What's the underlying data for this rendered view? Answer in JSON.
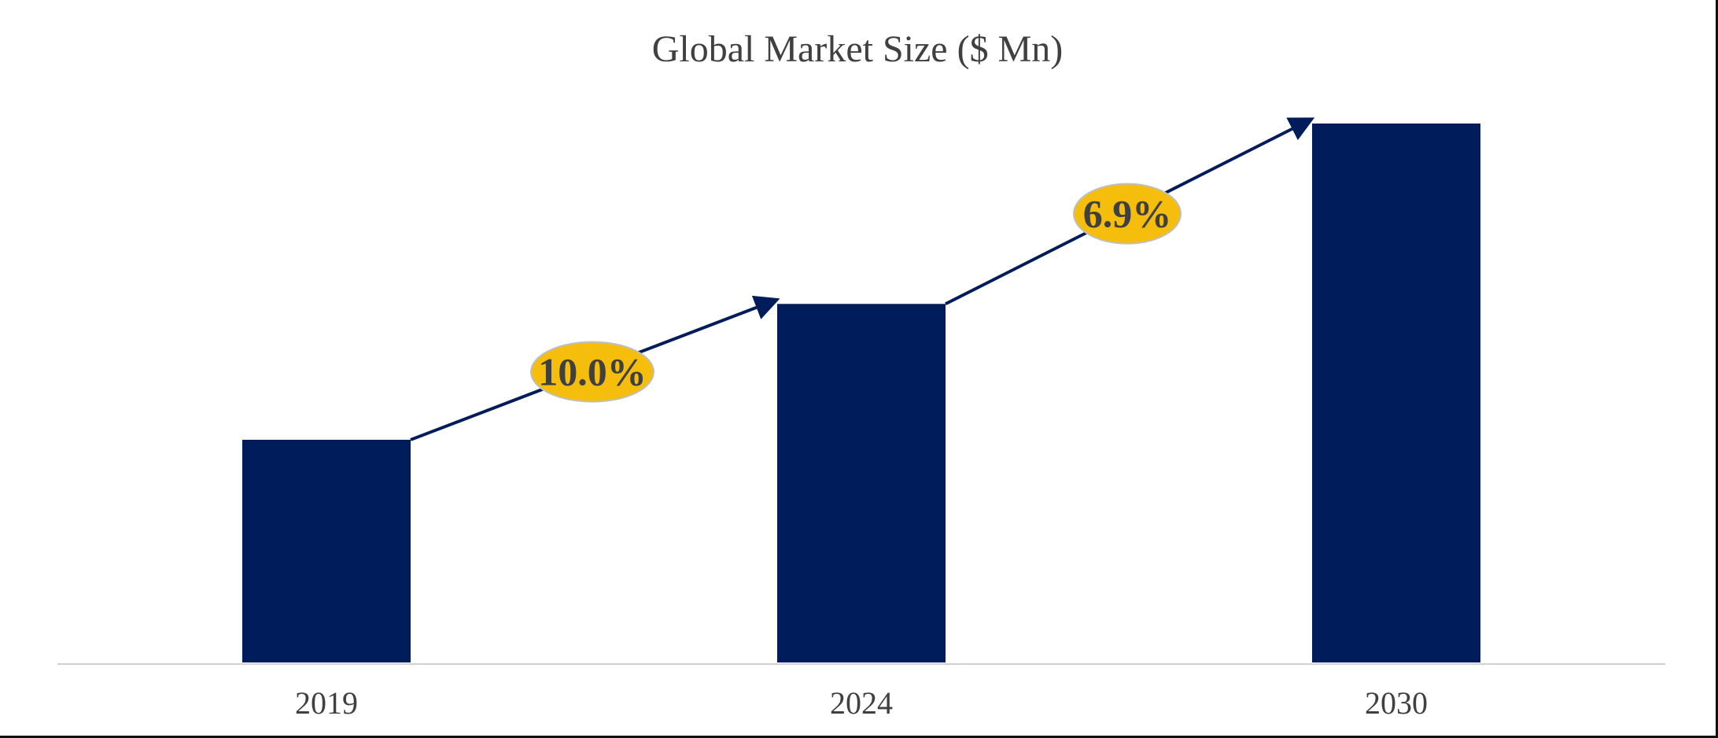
{
  "chart_data": {
    "type": "bar",
    "title": "Global Market Size ($ Mn)",
    "xlabel": "",
    "ylabel": "",
    "categories": [
      "2019",
      "2024",
      "2030"
    ],
    "values": [
      100,
      161,
      242
    ],
    "value_unit": "relative bar height (no y-axis printed)",
    "grid": false,
    "legend": "none",
    "annotations": [
      {
        "from": "2019",
        "to": "2024",
        "label": "10.0%"
      },
      {
        "from": "2024",
        "to": "2030",
        "label": "6.9%"
      }
    ],
    "colors": {
      "bar": "#001C5A",
      "arrow": "#001C5A",
      "badge_fill": "#F5BE0D",
      "badge_stroke": "#BFBFBF",
      "axis": "#D0D0D0",
      "text": "#404040"
    }
  }
}
